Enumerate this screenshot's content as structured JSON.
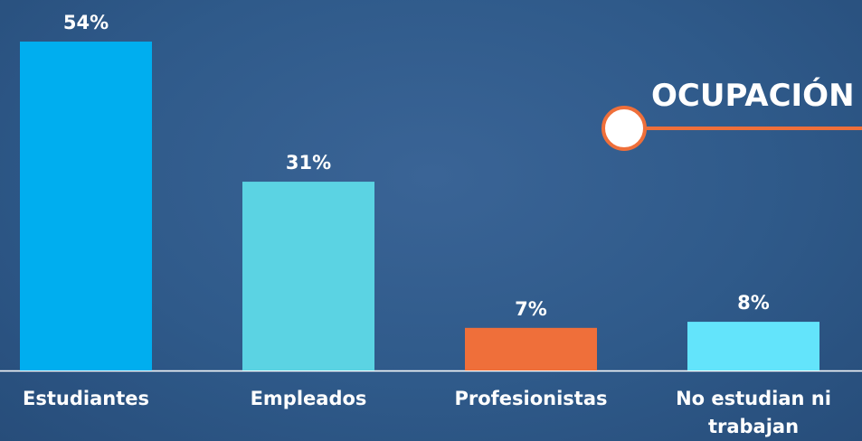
{
  "chart_data": {
    "type": "bar",
    "title": "OCUPACIÓN",
    "categories": [
      "Estudiantes",
      "Empleados",
      "Profesionistas",
      "No estudian ni trabajan"
    ],
    "values": [
      54,
      31,
      7,
      8
    ],
    "value_labels": [
      "54%",
      "31%",
      "7%",
      "8%"
    ],
    "colors": [
      "#00aeef",
      "#5bd3e3",
      "#ef6f3a",
      "#63e4fb"
    ]
  }
}
